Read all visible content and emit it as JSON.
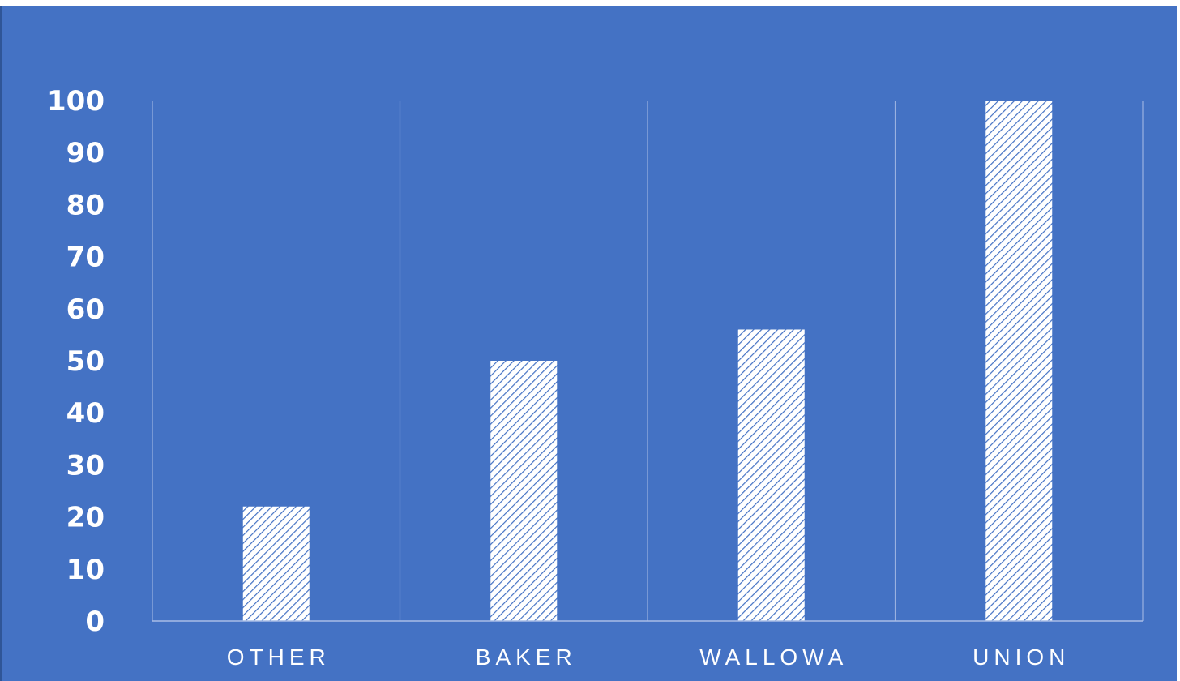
{
  "chart_data": {
    "type": "bar",
    "categories": [
      "OTHER",
      "BAKER",
      "WALLOWA",
      "UNION"
    ],
    "values": [
      22,
      50,
      56,
      100
    ],
    "title": "",
    "xlabel": "",
    "ylabel": "",
    "ylim": [
      0,
      100
    ],
    "yticks": [
      0,
      10,
      20,
      30,
      40,
      50,
      60,
      70,
      80,
      90,
      100
    ],
    "grid": "vertical category separators",
    "legend": "none",
    "colors": {
      "background": "#4472c4",
      "bar_fill": "#ffffff",
      "bar_hatch": "#4472c4",
      "axis_line": "#a9bde6",
      "text": "#ffffff"
    }
  }
}
